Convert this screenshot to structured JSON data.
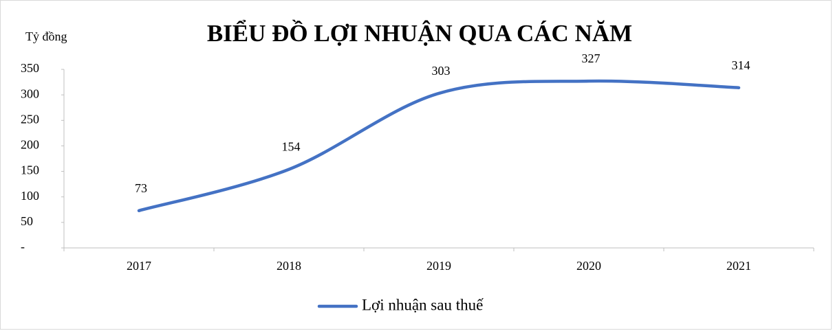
{
  "chart_data": {
    "type": "line",
    "title": "BIỂU ĐỒ LỢI NHUẬN QUA CÁC NĂM",
    "y_label": "Tỷ đồng",
    "categories": [
      "2017",
      "2018",
      "2019",
      "2020",
      "2021"
    ],
    "series": [
      {
        "name": "Lợi nhuận sau thuế",
        "color": "#4472c4",
        "values": [
          73,
          154,
          303,
          327,
          314
        ]
      }
    ],
    "ylim": [
      0,
      350
    ],
    "yticks": [
      {
        "value": 0,
        "label": "-"
      },
      50,
      100,
      150,
      200,
      250,
      300,
      350
    ],
    "smooth": true,
    "legend": "bottom"
  }
}
